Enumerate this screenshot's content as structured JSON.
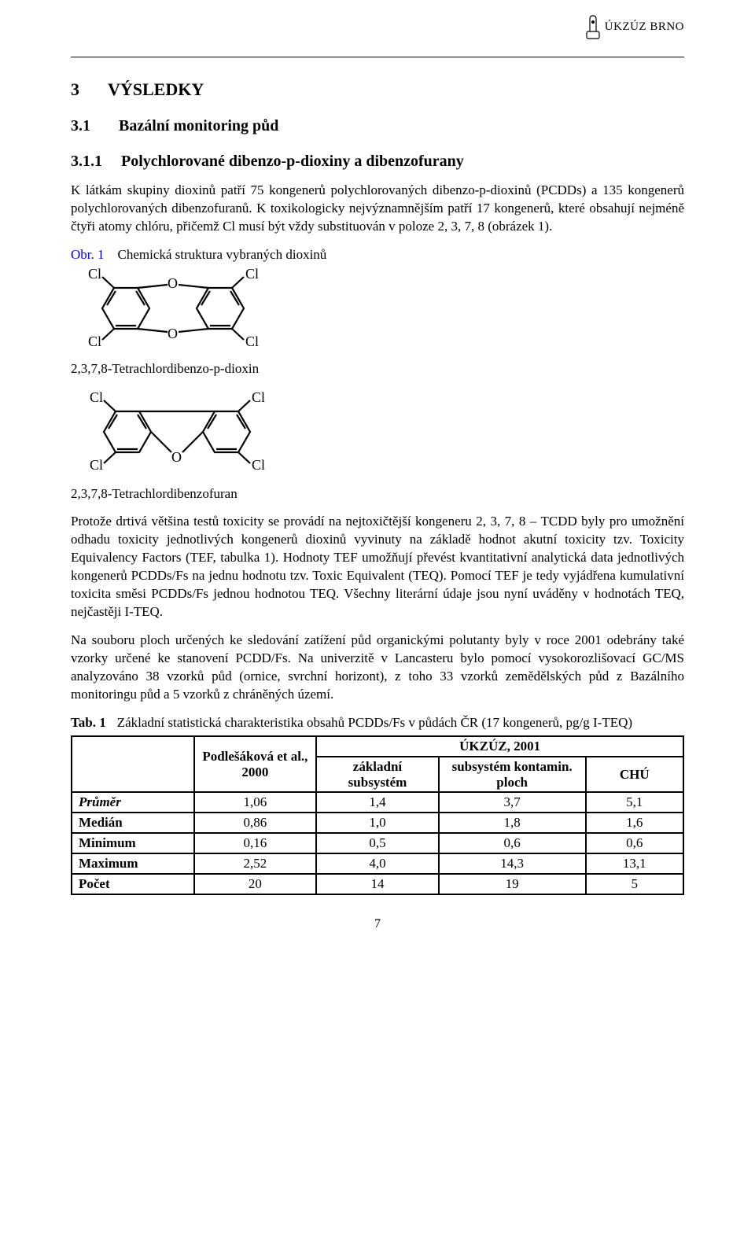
{
  "header": {
    "org": "ÚKZÚZ BRNO"
  },
  "sec3": {
    "num": "3",
    "title": "VÝSLEDKY"
  },
  "sec31": {
    "num": "3.1",
    "title": "Bazální monitoring půd"
  },
  "sec311": {
    "num": "3.1.1",
    "title": "Polychlorované dibenzo-p-dioxiny a dibenzofurany"
  },
  "para1": "K látkám skupiny dioxinů patří 75 kongenerů polychlorovaných dibenzo-p-dioxinů (PCDDs) a 135 kongenerů polychlorovaných dibenzofuranů. K toxikologicky nejvýznamnějším patří 17 kongenerů, které obsahují nejméně čtyři atomy chlóru, přičemž Cl musí být vždy substituován v poloze 2, 3, 7, 8 (obrázek 1).",
  "fig1": {
    "num": "Obr. 1",
    "title": "Chemická struktura vybraných dioxinů",
    "struct1_label": "2,3,7,8-Tetrachlordibenzo-p-dioxin",
    "struct2_label": "2,3,7,8-Tetrachlordibenzofuran",
    "stroke": "#000000",
    "stroke_width": 2
  },
  "para2": "Protože drtivá většina testů toxicity se provádí na nejtoxičtější kongeneru 2, 3, 7, 8 – TCDD byly pro umožnění odhadu toxicity jednotlivých kongenerů dioxinů vyvinuty na základě hodnot akutní toxicity tzv. Toxicity Equivalency Factors (TEF, tabulka 1). Hodnoty TEF umožňují převést kvantitativní analytická data jednotlivých kongenerů PCDDs/Fs na jednu hodnotu tzv. Toxic Equivalent (TEQ). Pomocí TEF je tedy vyjádřena kumulativní toxicita směsi PCDDs/Fs jednou hodnotou TEQ. Všechny literární údaje jsou nyní uváděny v hodnotách TEQ, nejčastěji I-TEQ.",
  "para3": "Na souboru ploch určených ke sledování zatížení půd organickými polutanty byly v roce 2001 odebrány také vzorky určené ke stanovení PCDD/Fs. Na univerzitě v Lancasteru  bylo pomocí vysokorozlišovací GC/MS analyzováno 38 vzorků půd (ornice, svrchní horizont), z toho 33 vzorků zemědělských půd z Bazálního monitoringu půd a 5 vzorků z chráněných území.",
  "tab1": {
    "num": "Tab. 1",
    "title": "Základní statistická charakteristika obsahů PCDDs/Fs v půdách ČR (17 kongenerů, pg/g I-TEQ)",
    "col1": "Podlešáková et al., 2000",
    "group": "ÚKZÚZ, 2001",
    "col2a": "základní subsystém",
    "col2b": "subsystém kontamin. ploch",
    "col3": "CHÚ",
    "rows": [
      {
        "label": "Průměr",
        "ital": true,
        "c1": "1,06",
        "c2": "1,4",
        "c3": "3,7",
        "c4": "5,1"
      },
      {
        "label": "Medián",
        "ital": false,
        "c1": "0,86",
        "c2": "1,0",
        "c3": "1,8",
        "c4": "1,6"
      },
      {
        "label": "Minimum",
        "ital": false,
        "c1": "0,16",
        "c2": "0,5",
        "c3": "0,6",
        "c4": "0,6"
      },
      {
        "label": "Maximum",
        "ital": false,
        "c1": "2,52",
        "c2": "4,0",
        "c3": "14,3",
        "c4": "13,1"
      },
      {
        "label": "Počet",
        "ital": false,
        "c1": "20",
        "c2": "14",
        "c3": "19",
        "c4": "5"
      }
    ]
  },
  "page_number": "7"
}
